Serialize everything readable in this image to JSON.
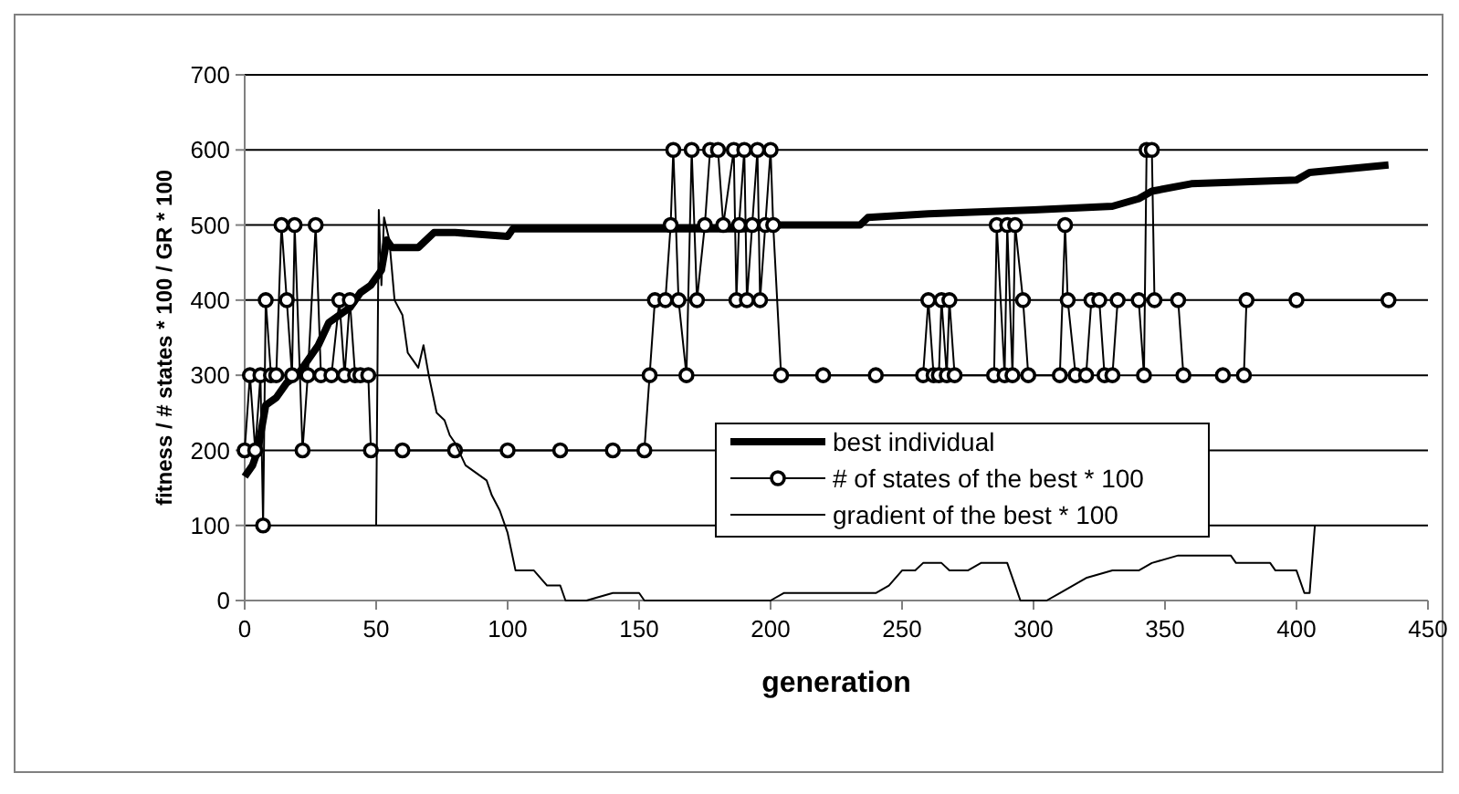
{
  "chart_data": {
    "type": "line",
    "xlabel": "generation",
    "ylabel": "fitness / # states * 100 / GR * 100",
    "xlim": [
      0,
      450
    ],
    "xticks": [
      0,
      50,
      100,
      150,
      200,
      250,
      300,
      350,
      400,
      450
    ],
    "ylim": [
      0,
      700
    ],
    "yticks": [
      0,
      100,
      200,
      300,
      400,
      500,
      600,
      700
    ],
    "grid": "y",
    "legend": "bottom right",
    "series": [
      {
        "name": "best individual",
        "color": "#000000",
        "marker": "none",
        "x": [
          0,
          3,
          5,
          8,
          12,
          16,
          20,
          24,
          28,
          32,
          36,
          40,
          44,
          48,
          52,
          54,
          56,
          66,
          72,
          80,
          100,
          102,
          140,
          150,
          190,
          204,
          234,
          237,
          260,
          300,
          330,
          340,
          345,
          360,
          400,
          405,
          435
        ],
        "values": [
          165,
          180,
          200,
          260,
          270,
          290,
          300,
          320,
          340,
          370,
          380,
          390,
          410,
          420,
          440,
          480,
          470,
          470,
          490,
          490,
          485,
          495,
          495,
          495,
          495,
          500,
          500,
          510,
          515,
          520,
          525,
          535,
          545,
          555,
          560,
          570,
          580
        ]
      },
      {
        "name": "# of states of the best * 100",
        "color": "#000000",
        "marker": "circle",
        "x": [
          0,
          2,
          4,
          6,
          7,
          8,
          10,
          12,
          14,
          16,
          18,
          19,
          22,
          24,
          27,
          29,
          33,
          36,
          38,
          40,
          42,
          44,
          47,
          48,
          60,
          80,
          100,
          120,
          140,
          152,
          154,
          156,
          160,
          162,
          163,
          165,
          168,
          170,
          172,
          175,
          177,
          180,
          182,
          186,
          187,
          188,
          190,
          191,
          193,
          195,
          196,
          198,
          200,
          201,
          204,
          220,
          240,
          258,
          260,
          262,
          264,
          265,
          267,
          268,
          270,
          285,
          286,
          289,
          290,
          292,
          293,
          296,
          298,
          310,
          312,
          313,
          316,
          320,
          322,
          325,
          327,
          330,
          332,
          340,
          342,
          343,
          345,
          346,
          355,
          357,
          372,
          380,
          381,
          400,
          435
        ],
        "values": [
          200,
          300,
          200,
          300,
          100,
          400,
          300,
          300,
          500,
          400,
          300,
          500,
          200,
          300,
          500,
          300,
          300,
          400,
          300,
          400,
          300,
          300,
          300,
          200,
          200,
          200,
          200,
          200,
          200,
          200,
          300,
          400,
          400,
          500,
          600,
          400,
          300,
          600,
          400,
          500,
          600,
          600,
          500,
          600,
          400,
          500,
          600,
          400,
          500,
          600,
          400,
          500,
          600,
          500,
          300,
          300,
          300,
          300,
          400,
          300,
          300,
          400,
          300,
          400,
          300,
          300,
          500,
          300,
          500,
          300,
          500,
          400,
          300,
          300,
          500,
          400,
          300,
          300,
          400,
          400,
          300,
          300,
          400,
          400,
          300,
          600,
          600,
          400,
          400,
          300,
          300,
          300,
          400,
          400,
          400
        ]
      },
      {
        "name": "gradient of the best * 100",
        "color": "#000000",
        "marker": "none",
        "x": [
          50,
          51,
          52,
          53,
          55,
          57,
          60,
          62,
          64,
          66,
          68,
          70,
          73,
          76,
          78,
          80,
          84,
          88,
          92,
          94,
          97,
          100,
          103,
          110,
          115,
          120,
          122,
          130,
          140,
          150,
          152,
          200,
          205,
          240,
          245,
          250,
          255,
          258,
          265,
          268,
          275,
          280,
          290,
          295,
          305,
          310,
          320,
          330,
          340,
          345,
          355,
          375,
          377,
          390,
          392,
          400,
          403,
          405,
          407
        ],
        "values": [
          100,
          520,
          420,
          510,
          480,
          400,
          380,
          330,
          320,
          310,
          340,
          300,
          250,
          240,
          220,
          210,
          180,
          170,
          160,
          140,
          120,
          90,
          40,
          40,
          20,
          20,
          0,
          0,
          10,
          10,
          0,
          0,
          10,
          10,
          20,
          40,
          40,
          50,
          50,
          40,
          40,
          50,
          50,
          0,
          0,
          10,
          30,
          40,
          40,
          50,
          60,
          60,
          50,
          50,
          40,
          40,
          10,
          10,
          100
        ]
      }
    ]
  }
}
